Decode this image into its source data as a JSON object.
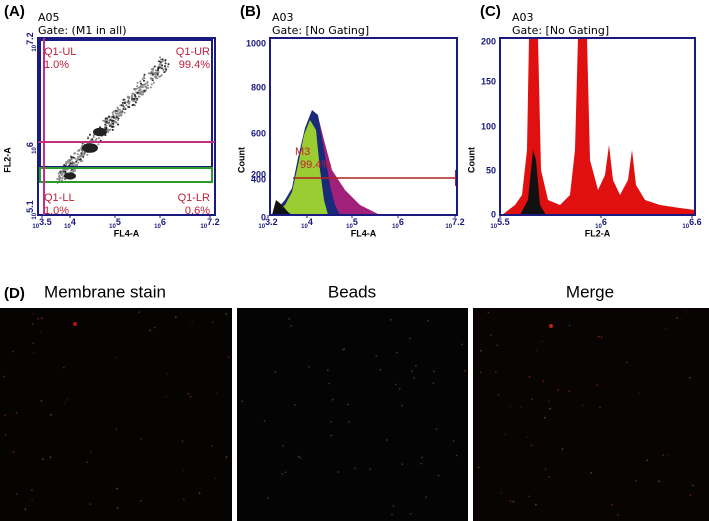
{
  "panels": [
    {
      "label": "(A)",
      "sample": "A05",
      "gate": "Gate: (M1 in all)",
      "x_axis": "FL4-A",
      "y_axis": "FL2-A",
      "xticks": [
        {
          "base": "10",
          "exp": "3.5"
        },
        {
          "base": "10",
          "exp": "4"
        },
        {
          "base": "10",
          "exp": "5"
        },
        {
          "base": "10",
          "exp": "6"
        },
        {
          "base": "10",
          "exp": "7.2"
        }
      ],
      "yticks": [
        {
          "base": "10",
          "exp": "5.1"
        },
        {
          "base": "10",
          "exp": "6"
        },
        {
          "base": "10",
          "exp": "7.2"
        }
      ],
      "quadrants": [
        {
          "name": "Q1-UL",
          "pct": "1.0%"
        },
        {
          "name": "Q1-UR",
          "pct": "99.4%"
        },
        {
          "name": "Q1-LL",
          "pct": "1.0%"
        },
        {
          "name": "Q1-LR",
          "pct": "0.6%"
        }
      ]
    },
    {
      "label": "(B)",
      "sample": "A03",
      "gate": "Gate: [No Gating]",
      "x_axis": "FL4-A",
      "y_axis": "Count",
      "xticks": [
        {
          "base": "10",
          "exp": "3.2"
        },
        {
          "base": "10",
          "exp": "4"
        },
        {
          "base": "10",
          "exp": "5"
        },
        {
          "base": "10",
          "exp": "6"
        },
        {
          "base": "10",
          "exp": "7.2"
        }
      ],
      "yticks": [
        "0",
        "200",
        "400",
        "600",
        "800",
        "1000"
      ],
      "marker": {
        "name": "M3",
        "pct": "99.4%"
      }
    },
    {
      "label": "(C)",
      "sample": "A03",
      "gate": "Gate: [No Gating]",
      "x_axis": "FL2-A",
      "y_axis": "Count",
      "xticks": [
        {
          "base": "10",
          "exp": "5.5"
        },
        {
          "base": "10",
          "exp": "6"
        },
        {
          "base": "10",
          "exp": "6.6"
        }
      ],
      "yticks": [
        "0",
        "50",
        "100",
        "150",
        "200"
      ]
    }
  ],
  "microscopy": {
    "label": "(D)",
    "titles": [
      "Membrane stain",
      "Beads",
      "Merge"
    ]
  }
}
